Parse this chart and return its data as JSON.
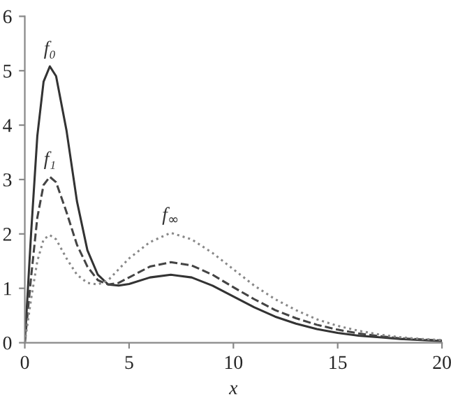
{
  "chart_data": {
    "type": "line",
    "xlabel": "x",
    "xlim": [
      0,
      20
    ],
    "ylim": [
      0,
      6
    ],
    "xticks": [
      0,
      5,
      10,
      15,
      20
    ],
    "yticks": [
      0,
      1,
      2,
      3,
      4,
      5,
      6
    ],
    "grid": false,
    "legend": false,
    "marker": "none",
    "x": [
      0,
      0.3,
      0.6,
      0.9,
      1.2,
      1.5,
      2,
      2.5,
      3,
      3.5,
      4,
      4.5,
      5,
      6,
      7,
      8,
      9,
      10,
      11,
      12,
      13,
      14,
      15,
      16,
      17,
      18,
      19,
      20
    ],
    "series": [
      {
        "name": "f₀",
        "color": "#333333",
        "line_style": "solid",
        "values": [
          0,
          2.0,
          3.8,
          4.8,
          5.08,
          4.9,
          3.9,
          2.6,
          1.7,
          1.25,
          1.07,
          1.05,
          1.08,
          1.2,
          1.25,
          1.2,
          1.05,
          0.85,
          0.65,
          0.48,
          0.35,
          0.25,
          0.18,
          0.13,
          0.1,
          0.07,
          0.05,
          0.03
        ]
      },
      {
        "name": "f₁",
        "color": "#444444",
        "line_style": "dashed",
        "values": [
          0,
          1.2,
          2.3,
          2.9,
          3.05,
          2.95,
          2.4,
          1.8,
          1.4,
          1.15,
          1.07,
          1.1,
          1.2,
          1.4,
          1.48,
          1.42,
          1.25,
          1.02,
          0.8,
          0.6,
          0.45,
          0.33,
          0.24,
          0.17,
          0.12,
          0.08,
          0.06,
          0.04
        ]
      },
      {
        "name": "f$_{∞}$",
        "color": "#888888",
        "line_style": "dotted",
        "values": [
          0,
          0.8,
          1.5,
          1.9,
          1.98,
          1.9,
          1.55,
          1.25,
          1.1,
          1.07,
          1.15,
          1.35,
          1.55,
          1.85,
          2.02,
          1.9,
          1.65,
          1.35,
          1.05,
          0.8,
          0.6,
          0.43,
          0.31,
          0.22,
          0.15,
          0.1,
          0.07,
          0.05
        ]
      }
    ]
  }
}
